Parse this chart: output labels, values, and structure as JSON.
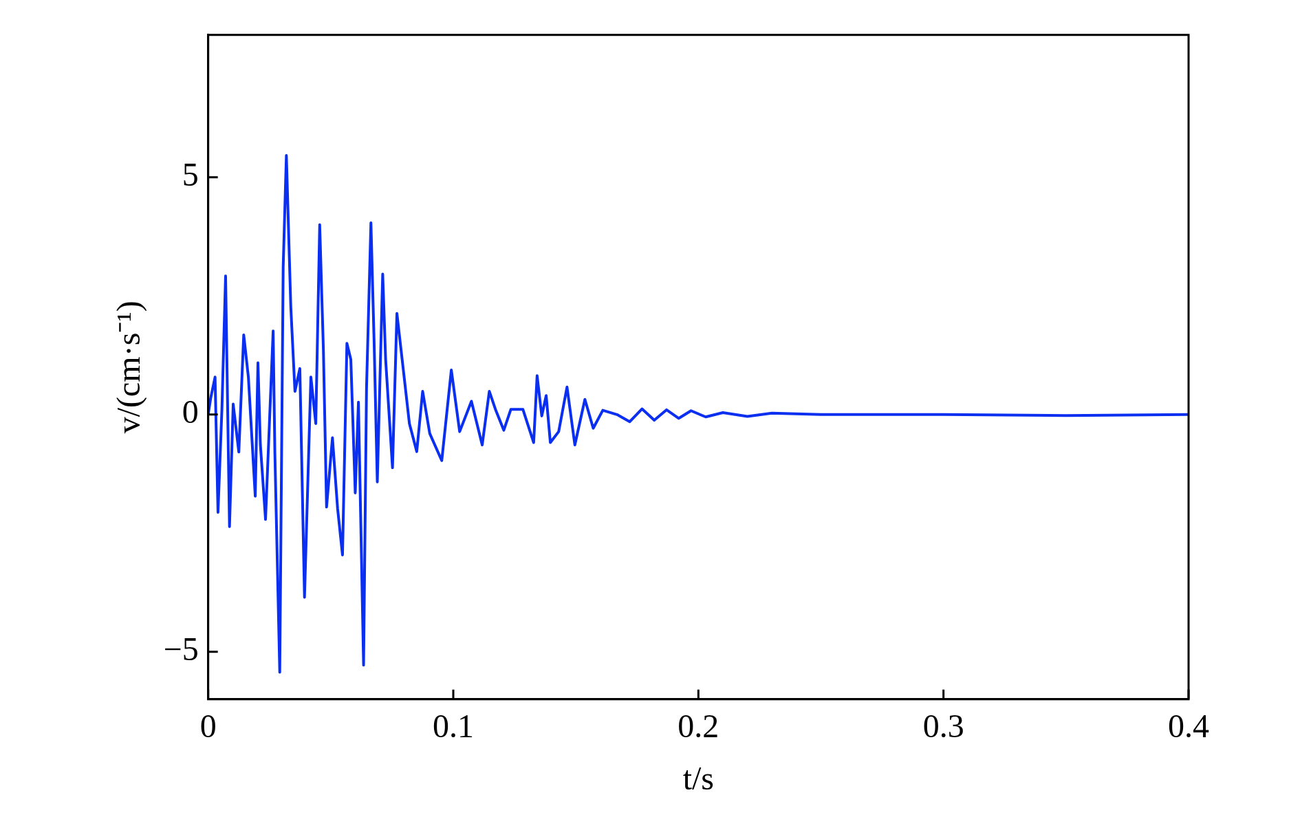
{
  "chart_data": {
    "type": "line",
    "xlabel": "t/s",
    "ylabel": "v/(cm·s⁻¹)",
    "xlim": [
      0,
      0.4
    ],
    "xticks": [
      0,
      0.1,
      0.2,
      0.3,
      0.4
    ],
    "ylim": [
      -6,
      8
    ],
    "yticks": [
      -5,
      0,
      5
    ],
    "marker": "none",
    "grid": false,
    "legend": false,
    "series": [
      {
        "color": "#0a2ff0",
        "x": [
          0,
          0.001,
          0.0028,
          0.004,
          0.0056,
          0.0071,
          0.0087,
          0.0102,
          0.0125,
          0.0145,
          0.0164,
          0.0192,
          0.0203,
          0.0213,
          0.0234,
          0.0265,
          0.0272,
          0.0292,
          0.0306,
          0.0319,
          0.0337,
          0.0354,
          0.0374,
          0.0393,
          0.0419,
          0.0439,
          0.0455,
          0.047,
          0.0483,
          0.0507,
          0.0528,
          0.0548,
          0.0566,
          0.0582,
          0.06,
          0.0613,
          0.0634,
          0.0646,
          0.0664,
          0.0677,
          0.069,
          0.0712,
          0.0724,
          0.0752,
          0.077,
          0.0798,
          0.0821,
          0.0851,
          0.0875,
          0.0904,
          0.0953,
          0.0992,
          0.1026,
          0.1074,
          0.1118,
          0.1147,
          0.1172,
          0.1206,
          0.1235,
          0.1284,
          0.1328,
          0.1342,
          0.1361,
          0.1379,
          0.1396,
          0.143,
          0.1464,
          0.1496,
          0.1537,
          0.1571,
          0.161,
          0.1668,
          0.172,
          0.177,
          0.182,
          0.187,
          0.192,
          0.197,
          0.203,
          0.21,
          0.22,
          0.23,
          0.25,
          0.3,
          0.35,
          0.4
        ],
        "values": [
          0,
          0.34,
          0.79,
          -2.06,
          0.11,
          2.92,
          -2.36,
          0.22,
          -0.79,
          1.68,
          0.79,
          -1.72,
          1.09,
          -0.64,
          -2.21,
          1.76,
          -0.79,
          -5.43,
          3.11,
          5.46,
          2.28,
          0.49,
          0.97,
          -3.85,
          0.79,
          -0.19,
          4.0,
          1.38,
          -1.95,
          -0.49,
          -1.98,
          -2.96,
          1.5,
          1.16,
          -1.65,
          0.26,
          -5.28,
          0.56,
          4.04,
          1.53,
          -1.42,
          2.96,
          1.16,
          -1.12,
          2.13,
          0.86,
          -0.19,
          -0.78,
          0.49,
          -0.4,
          -0.97,
          0.94,
          -0.36,
          0.28,
          -0.64,
          0.49,
          0.11,
          -0.33,
          0.11,
          0.11,
          -0.59,
          0.82,
          -0.03,
          0.4,
          -0.59,
          -0.36,
          0.58,
          -0.64,
          0.32,
          -0.29,
          0.09,
          0,
          -0.15,
          0.12,
          -0.12,
          0.1,
          -0.08,
          0.08,
          -0.05,
          0.04,
          -0.04,
          0.03,
          0,
          0,
          -0.02,
          0
        ]
      }
    ]
  }
}
